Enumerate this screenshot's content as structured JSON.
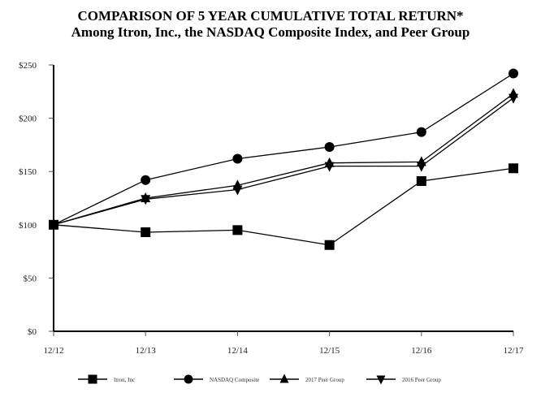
{
  "chart_data": {
    "type": "line",
    "title": "COMPARISON OF 5 YEAR CUMULATIVE TOTAL RETURN*",
    "subtitle": "Among Itron, Inc., the NASDAQ Composite Index, and Peer Group",
    "xlabel": "",
    "ylabel": "",
    "categories": [
      "12/12",
      "12/13",
      "12/14",
      "12/15",
      "12/16",
      "12/17"
    ],
    "y_ticks": [
      "$0",
      "$50",
      "$100",
      "$150",
      "$200",
      "$250"
    ],
    "y_tick_values": [
      0,
      50,
      100,
      150,
      200,
      250
    ],
    "ylim": [
      0,
      250
    ],
    "grid": false,
    "legend_position": "bottom",
    "series": [
      {
        "name": "Itron, Inc",
        "marker": "square",
        "values": [
          100,
          93,
          95,
          81,
          141,
          153
        ]
      },
      {
        "name": "NASDAQ Composite",
        "marker": "circle",
        "values": [
          100,
          142,
          162,
          173,
          187,
          242
        ]
      },
      {
        "name": "2017 Peer Group",
        "marker": "triangle-up",
        "values": [
          100,
          125,
          137,
          158,
          159,
          223
        ]
      },
      {
        "name": "2016 Peer Group",
        "marker": "triangle-down",
        "values": [
          100,
          124,
          133,
          155,
          155,
          219
        ]
      }
    ]
  },
  "colors": {
    "line": "#000000",
    "background": "#ffffff"
  }
}
